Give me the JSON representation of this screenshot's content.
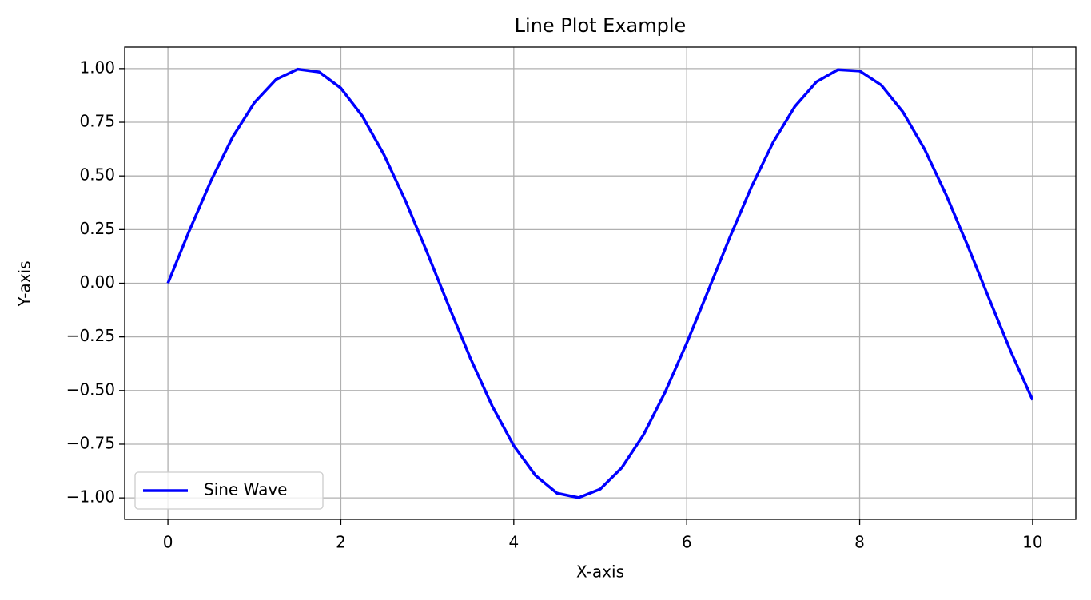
{
  "chart_data": {
    "type": "line",
    "title": "Line Plot Example",
    "xlabel": "X-axis",
    "ylabel": "Y-axis",
    "x": [
      0,
      0.25,
      0.5,
      0.75,
      1,
      1.25,
      1.5,
      1.75,
      2,
      2.25,
      2.5,
      2.75,
      3,
      3.25,
      3.5,
      3.75,
      4,
      4.25,
      4.5,
      4.75,
      5,
      5.25,
      5.5,
      5.75,
      6,
      6.25,
      6.5,
      6.75,
      7,
      7.25,
      7.5,
      7.75,
      8,
      8.25,
      8.5,
      8.75,
      9,
      9.25,
      9.5,
      9.75,
      10
    ],
    "series": [
      {
        "name": "Sine Wave",
        "color": "#0000ff",
        "values": [
          0,
          0.247,
          0.479,
          0.682,
          0.841,
          0.949,
          0.997,
          0.984,
          0.909,
          0.778,
          0.598,
          0.382,
          0.141,
          -0.108,
          -0.351,
          -0.572,
          -0.757,
          -0.895,
          -0.978,
          -0.999,
          -0.959,
          -0.859,
          -0.706,
          -0.508,
          -0.279,
          -0.033,
          0.215,
          0.45,
          0.657,
          0.823,
          0.938,
          0.995,
          0.989,
          0.923,
          0.798,
          0.625,
          0.412,
          0.174,
          -0.075,
          -0.32,
          -0.544
        ]
      }
    ],
    "xlim": [
      -0.5,
      10.5
    ],
    "xticks": [
      0,
      2,
      4,
      6,
      8,
      10
    ],
    "ylim": [
      -1.1,
      1.1
    ],
    "yticks": [
      {
        "value": -1,
        "label": "−1.00"
      },
      {
        "value": -0.75,
        "label": "−0.75"
      },
      {
        "value": -0.5,
        "label": "−0.50"
      },
      {
        "value": -0.25,
        "label": "−0.25"
      },
      {
        "value": 0,
        "label": "0.00"
      },
      {
        "value": 0.25,
        "label": "0.25"
      },
      {
        "value": 0.5,
        "label": "0.50"
      },
      {
        "value": 0.75,
        "label": "0.75"
      },
      {
        "value": 1,
        "label": "1.00"
      }
    ],
    "grid": true,
    "legend": "lower left"
  }
}
